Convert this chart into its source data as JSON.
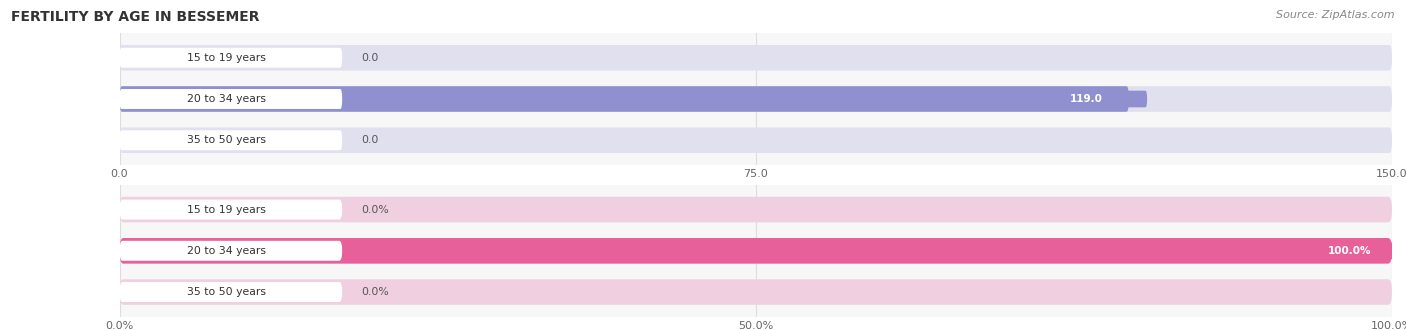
{
  "title": "FERTILITY BY AGE IN BESSEMER",
  "source": "Source: ZipAtlas.com",
  "top_chart": {
    "categories": [
      "15 to 19 years",
      "20 to 34 years",
      "35 to 50 years"
    ],
    "values": [
      0.0,
      119.0,
      0.0
    ],
    "xlim": [
      0,
      150
    ],
    "xticks": [
      0.0,
      75.0,
      150.0
    ],
    "xtick_labels": [
      "0.0",
      "75.0",
      "150.0"
    ],
    "bar_color": "#9090d0",
    "bar_bg_color": "#e0e0ee",
    "label_pill_color": "#ffffff",
    "value_color_inside": "#ffffff",
    "value_color_outside": "#666666"
  },
  "bottom_chart": {
    "categories": [
      "15 to 19 years",
      "20 to 34 years",
      "35 to 50 years"
    ],
    "values": [
      0.0,
      100.0,
      0.0
    ],
    "xlim": [
      0,
      100
    ],
    "xticks": [
      0.0,
      50.0,
      100.0
    ],
    "xtick_labels": [
      "0.0%",
      "50.0%",
      "100.0%"
    ],
    "bar_color": "#e8609a",
    "bar_bg_color": "#f0d0e0",
    "label_pill_color": "#ffffff",
    "value_color_inside": "#ffffff",
    "value_color_outside": "#666666"
  },
  "page_bg_color": "#ffffff",
  "chart_bg_color": "#f7f7f7",
  "bar_height": 0.62,
  "title_color": "#333333",
  "source_color": "#888888",
  "grid_color": "#dddddd"
}
